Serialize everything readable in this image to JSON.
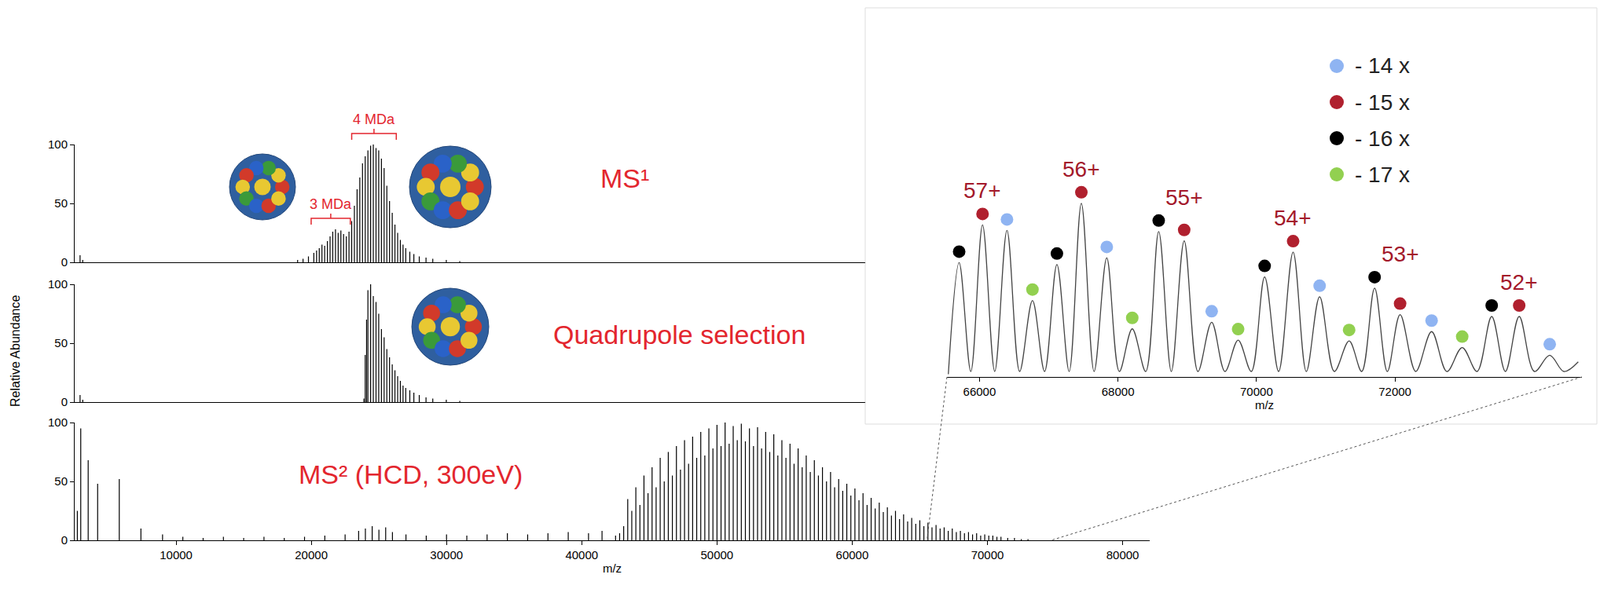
{
  "chart_data": [
    {
      "type": "stick",
      "title": "MS¹",
      "color": "#000000",
      "grid": false,
      "tick_labels": "y",
      "xlim": [
        2500,
        61000
      ],
      "ylim": [
        0,
        100
      ],
      "yticks": [
        0,
        50,
        100
      ],
      "x": [
        2900,
        3100,
        19000,
        19400,
        19800,
        20200,
        20400,
        20600,
        20800,
        21000,
        21200,
        21400,
        21600,
        21800,
        22000,
        22200,
        22400,
        22600,
        22800,
        23000,
        23200,
        23400,
        23600,
        23800,
        24000,
        24200,
        24400,
        24600,
        24800,
        25000,
        25200,
        25400,
        25600,
        25800,
        26000,
        26200,
        26400,
        26600,
        26800,
        27000,
        27300,
        27600,
        28000,
        28500,
        29000,
        30000,
        31000
      ],
      "values": [
        6,
        2,
        2,
        3,
        5,
        8,
        10,
        12,
        15,
        14,
        18,
        22,
        26,
        28,
        25,
        27,
        24,
        22,
        26,
        35,
        48,
        62,
        72,
        84,
        90,
        95,
        99,
        100,
        97,
        95,
        88,
        80,
        65,
        52,
        42,
        32,
        25,
        19,
        15,
        12,
        9,
        7,
        5,
        4,
        3,
        2,
        1
      ],
      "annotations": [
        {
          "text": "4 MDa",
          "x": [
            23000,
            26300
          ]
        },
        {
          "text": "3 MDa",
          "x": [
            20000,
            22900
          ]
        }
      ]
    },
    {
      "type": "stick",
      "title": "Quadrupole selection",
      "color": "#000000",
      "grid": false,
      "tick_labels": "y",
      "y_label": "Relative Abundance",
      "xlim": [
        2500,
        61000
      ],
      "ylim": [
        0,
        100
      ],
      "yticks": [
        0,
        50,
        100
      ],
      "x": [
        2900,
        3100,
        23900,
        24000,
        24100,
        24200,
        24400,
        24600,
        24800,
        25000,
        25200,
        25400,
        25600,
        25800,
        26000,
        26200,
        26400,
        26600,
        26800,
        27000,
        27300,
        27600,
        28000,
        28500,
        29000,
        30000,
        31000
      ],
      "values": [
        6,
        2,
        3,
        40,
        70,
        95,
        100,
        90,
        85,
        75,
        62,
        55,
        45,
        38,
        32,
        27,
        22,
        18,
        14,
        12,
        10,
        8,
        6,
        4,
        3,
        2,
        1
      ]
    },
    {
      "type": "stick",
      "title": "MS² (HCD, 300eV)",
      "color": "#000000",
      "grid": false,
      "x_label": "m/z",
      "xlim": [
        2500,
        82000
      ],
      "ylim": [
        0,
        100
      ],
      "yticks": [
        0,
        50,
        100
      ],
      "xticks": [
        10000,
        20000,
        30000,
        40000,
        50000,
        60000,
        70000,
        80000
      ],
      "x": [
        2700,
        2950,
        3500,
        4200,
        5800,
        7400,
        9000,
        10500,
        12000,
        13500,
        15000,
        16500,
        18000,
        19500,
        21000,
        22500,
        23500,
        24000,
        24500,
        25000,
        25500,
        26000,
        27000,
        28500,
        30000,
        31500,
        33000,
        34500,
        36000,
        37500,
        39000,
        40500,
        41500,
        42500,
        42800,
        43100,
        43400,
        43700,
        44000,
        44300,
        44600,
        44900,
        45200,
        45500,
        45800,
        46100,
        46400,
        46700,
        47000,
        47300,
        47600,
        47900,
        48200,
        48500,
        48800,
        49100,
        49400,
        49700,
        50000,
        50300,
        50600,
        50900,
        51200,
        51500,
        51800,
        52100,
        52400,
        52700,
        53000,
        53300,
        53600,
        53900,
        54200,
        54500,
        54800,
        55100,
        55400,
        55700,
        56000,
        56300,
        56600,
        56900,
        57200,
        57500,
        57800,
        58100,
        58400,
        58700,
        59000,
        59300,
        59600,
        59900,
        60200,
        60500,
        60800,
        61100,
        61400,
        61700,
        62000,
        62300,
        62600,
        62900,
        63200,
        63500,
        63800,
        64100,
        64400,
        64700,
        65000,
        65300,
        65600,
        65900,
        66200,
        66500,
        66800,
        67100,
        67400,
        67700,
        68000,
        68300,
        68600,
        68900,
        69200,
        69500,
        69800,
        70100,
        70400,
        70700,
        71000,
        71500,
        72000,
        72500,
        73000
      ],
      "values": [
        25,
        95,
        68,
        48,
        52,
        10,
        5,
        3,
        2,
        3,
        2,
        3,
        2,
        3,
        4,
        5,
        8,
        10,
        12,
        9,
        11,
        7,
        5,
        4,
        5,
        4,
        5,
        6,
        5,
        6,
        7,
        6,
        8,
        4,
        6,
        12,
        35,
        25,
        45,
        30,
        55,
        40,
        62,
        45,
        70,
        50,
        75,
        55,
        80,
        60,
        85,
        65,
        88,
        70,
        92,
        72,
        95,
        78,
        98,
        80,
        100,
        82,
        97,
        85,
        99,
        84,
        95,
        80,
        96,
        78,
        92,
        75,
        90,
        72,
        85,
        70,
        82,
        65,
        78,
        62,
        72,
        58,
        68,
        55,
        62,
        50,
        58,
        45,
        52,
        42,
        48,
        38,
        44,
        34,
        40,
        30,
        36,
        27,
        32,
        24,
        28,
        21,
        25,
        18,
        22,
        16,
        19,
        14,
        17,
        12,
        15,
        11,
        13,
        10,
        11,
        8,
        10,
        7,
        8,
        6,
        7,
        5,
        6,
        4,
        5,
        4,
        4,
        3,
        3,
        2,
        2,
        1,
        1
      ]
    },
    {
      "type": "line",
      "color": "#444444",
      "grid": false,
      "tick_labels": "x",
      "x_label": "m/z",
      "legend": "top-right",
      "xlim": [
        65530,
        74700
      ],
      "ylim": [
        0,
        100
      ],
      "xticks": [
        66000,
        68000,
        70000,
        72000
      ],
      "x": [
        65550,
        65706,
        65875,
        66044,
        66220,
        66397,
        66580,
        66765,
        66940,
        67118,
        67295,
        67471,
        67655,
        67838,
        68020,
        68206,
        68400,
        68588,
        68770,
        68956,
        69155,
        69353,
        69545,
        69735,
        69925,
        70118,
        70320,
        70529,
        70720,
        70912,
        71125,
        71338,
        71520,
        71706,
        71890,
        72074,
        72300,
        72529,
        72750,
        72971,
        73185,
        73397,
        73595,
        73794,
        74015,
        74235,
        74440,
        74647
      ],
      "values": [
        1,
        41.6,
        2,
        55.3,
        2,
        53.3,
        2,
        27.8,
        2,
        40.9,
        2,
        63.2,
        2,
        43.3,
        2,
        17.5,
        2,
        52.9,
        2,
        49.5,
        2,
        19.9,
        2,
        13.4,
        2,
        36.4,
        2,
        45.4,
        2,
        29.2,
        2,
        13.1,
        2,
        32.3,
        2,
        22.7,
        2,
        16.5,
        2,
        10.7,
        2,
        22,
        2,
        22,
        2,
        7.9,
        2,
        5.5
      ],
      "series": [
        {
          "name": "- 14 x",
          "color": "#8fb4f2",
          "x": [
            66397,
            67838,
            69353,
            70912,
            72529,
            74235
          ],
          "values": [
            53.3,
            43.3,
            19.9,
            29.2,
            16.5,
            7.9
          ]
        },
        {
          "name": "- 15 x",
          "color": "#b0202e",
          "x": [
            66044,
            67471,
            68956,
            70529,
            72074,
            73794
          ],
          "values": [
            55.3,
            63.2,
            49.5,
            45.4,
            22.7,
            22
          ]
        },
        {
          "name": "- 16 x",
          "color": "#000000",
          "x": [
            65706,
            67118,
            68588,
            70118,
            71706,
            73397
          ],
          "values": [
            41.6,
            40.9,
            52.9,
            36.4,
            32.3,
            22
          ]
        },
        {
          "name": "- 17 x",
          "color": "#92d050",
          "x": [
            66765,
            68206,
            69735,
            71338,
            72971
          ],
          "values": [
            27.8,
            17.5,
            13.4,
            13.1,
            10.7
          ]
        }
      ],
      "annotations": [
        {
          "text": "57+",
          "x": 66044
        },
        {
          "text": "56+",
          "x": 67471
        },
        {
          "text": "55+",
          "x": 68956
        },
        {
          "text": "54+",
          "x": 70529
        },
        {
          "text": "53+",
          "x": 72074
        },
        {
          "text": "52+",
          "x": 73794
        }
      ]
    }
  ]
}
